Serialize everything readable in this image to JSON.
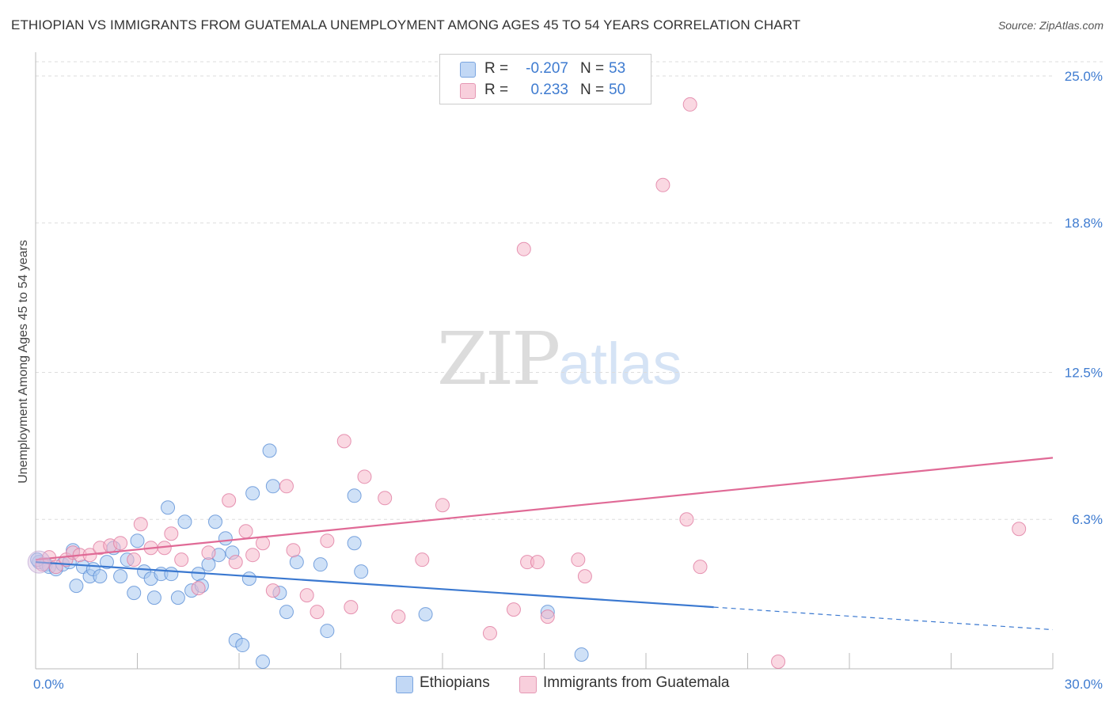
{
  "chart_data": {
    "type": "scatter",
    "title": "ETHIOPIAN VS IMMIGRANTS FROM GUATEMALA UNEMPLOYMENT AMONG AGES 45 TO 54 YEARS CORRELATION CHART",
    "source": "Source: ZipAtlas.com",
    "xlabel": "",
    "ylabel": "Unemployment Among Ages 45 to 54 years",
    "xlim": [
      0,
      30
    ],
    "ylim": [
      0,
      25.6
    ],
    "x_tick_labels": [
      {
        "value": 0,
        "label": "0.0%"
      },
      {
        "value": 30,
        "label": "30.0%"
      }
    ],
    "y_tick_labels": [
      {
        "value": 6.3,
        "label": "6.3%"
      },
      {
        "value": 12.5,
        "label": "12.5%"
      },
      {
        "value": 18.8,
        "label": "18.8%"
      },
      {
        "value": 25.0,
        "label": "25.0%"
      }
    ],
    "watermark": {
      "part1": "ZIP",
      "part2": "atlas"
    },
    "legend": {
      "r_label": "R =",
      "n_label": "N =",
      "entries": [
        {
          "name": "Ethiopians",
          "r": "-0.207",
          "n": "53"
        },
        {
          "name": "Immigrants from Guatemala",
          "r": "0.233",
          "n": "50"
        }
      ]
    },
    "series": [
      {
        "name": "Ethiopians",
        "fill": "#a8c8f0",
        "stroke": "#5b8fd6",
        "line_color": "#3a78d0",
        "trend": {
          "x0": 0,
          "y0": 4.5,
          "x1": 20.0,
          "y1": 2.6,
          "dash_to_x": 30,
          "dash_to_y": 1.65
        },
        "points": [
          [
            0.1,
            4.5
          ],
          [
            0.3,
            4.4
          ],
          [
            0.4,
            4.3
          ],
          [
            0.6,
            4.2
          ],
          [
            0.8,
            4.4
          ],
          [
            1.0,
            4.5
          ],
          [
            1.1,
            5.0
          ],
          [
            1.2,
            3.5
          ],
          [
            1.4,
            4.3
          ],
          [
            1.6,
            3.9
          ],
          [
            1.7,
            4.2
          ],
          [
            1.9,
            3.9
          ],
          [
            2.1,
            4.5
          ],
          [
            2.3,
            5.1
          ],
          [
            2.5,
            3.9
          ],
          [
            2.7,
            4.6
          ],
          [
            2.9,
            3.2
          ],
          [
            3.0,
            5.4
          ],
          [
            3.2,
            4.1
          ],
          [
            3.4,
            3.8
          ],
          [
            3.5,
            3.0
          ],
          [
            3.7,
            4.0
          ],
          [
            3.9,
            6.8
          ],
          [
            4.0,
            4.0
          ],
          [
            4.2,
            3.0
          ],
          [
            4.4,
            6.2
          ],
          [
            4.6,
            3.3
          ],
          [
            4.8,
            4.0
          ],
          [
            4.9,
            3.5
          ],
          [
            5.1,
            4.4
          ],
          [
            5.3,
            6.2
          ],
          [
            5.4,
            4.8
          ],
          [
            5.6,
            5.5
          ],
          [
            5.8,
            4.9
          ],
          [
            5.9,
            1.2
          ],
          [
            6.1,
            1.0
          ],
          [
            6.3,
            3.8
          ],
          [
            6.4,
            7.4
          ],
          [
            6.7,
            0.3
          ],
          [
            6.9,
            9.2
          ],
          [
            7.0,
            7.7
          ],
          [
            7.2,
            3.2
          ],
          [
            7.4,
            2.4
          ],
          [
            7.7,
            4.5
          ],
          [
            8.4,
            4.4
          ],
          [
            8.6,
            1.6
          ],
          [
            9.4,
            5.3
          ],
          [
            9.4,
            7.3
          ],
          [
            9.6,
            4.1
          ],
          [
            11.5,
            2.3
          ],
          [
            15.1,
            2.4
          ],
          [
            16.1,
            0.6
          ],
          [
            0.05,
            4.6
          ]
        ]
      },
      {
        "name": "Immigrants from Guatemala",
        "fill": "#f5b8cb",
        "stroke": "#e07aa0",
        "line_color": "#e06a96",
        "trend": {
          "x0": 0,
          "y0": 4.6,
          "x1": 30,
          "y1": 8.9
        },
        "points": [
          [
            0.2,
            4.4
          ],
          [
            0.4,
            4.7
          ],
          [
            0.6,
            4.3
          ],
          [
            0.9,
            4.6
          ],
          [
            1.1,
            4.9
          ],
          [
            1.3,
            4.8
          ],
          [
            1.6,
            4.8
          ],
          [
            1.9,
            5.1
          ],
          [
            2.2,
            5.2
          ],
          [
            2.5,
            5.3
          ],
          [
            2.9,
            4.6
          ],
          [
            3.1,
            6.1
          ],
          [
            3.4,
            5.1
          ],
          [
            3.8,
            5.1
          ],
          [
            4.0,
            5.7
          ],
          [
            4.3,
            4.6
          ],
          [
            4.8,
            3.4
          ],
          [
            5.1,
            4.9
          ],
          [
            5.7,
            7.1
          ],
          [
            5.9,
            4.5
          ],
          [
            6.2,
            5.8
          ],
          [
            6.4,
            4.8
          ],
          [
            6.7,
            5.3
          ],
          [
            7.0,
            3.3
          ],
          [
            7.4,
            7.7
          ],
          [
            7.6,
            5.0
          ],
          [
            8.0,
            3.1
          ],
          [
            8.3,
            2.4
          ],
          [
            8.6,
            5.4
          ],
          [
            9.1,
            9.6
          ],
          [
            9.3,
            2.6
          ],
          [
            9.7,
            8.1
          ],
          [
            10.3,
            7.2
          ],
          [
            10.7,
            2.2
          ],
          [
            11.4,
            4.6
          ],
          [
            12.0,
            6.9
          ],
          [
            13.4,
            1.5
          ],
          [
            14.1,
            2.5
          ],
          [
            14.4,
            17.7
          ],
          [
            14.5,
            4.5
          ],
          [
            14.8,
            4.5
          ],
          [
            15.1,
            2.2
          ],
          [
            16.0,
            4.6
          ],
          [
            16.2,
            3.9
          ],
          [
            18.5,
            20.4
          ],
          [
            19.2,
            6.3
          ],
          [
            19.3,
            23.8
          ],
          [
            19.6,
            4.3
          ],
          [
            21.9,
            0.3
          ],
          [
            29.0,
            5.9
          ]
        ]
      }
    ]
  }
}
